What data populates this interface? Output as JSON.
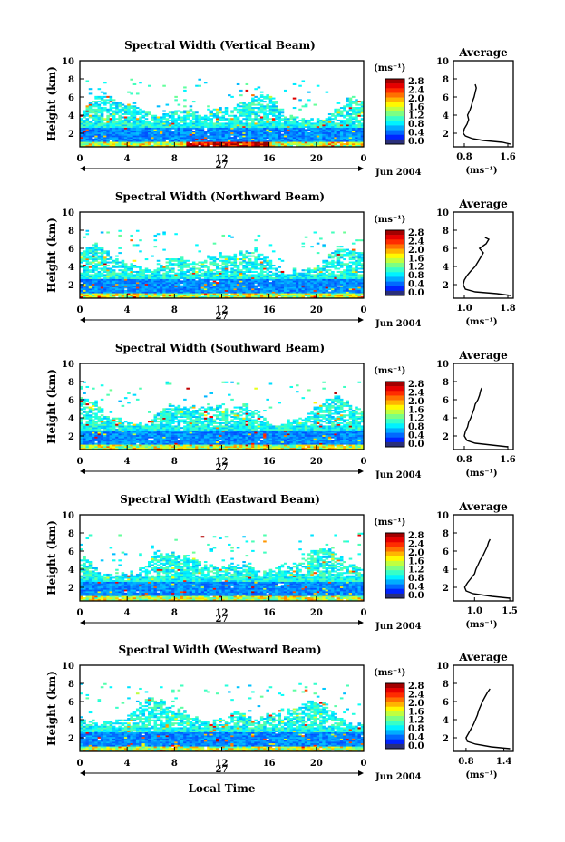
{
  "chart_data": [
    {
      "type": "heatmap",
      "title": "Spectral Width (Vertical Beam)",
      "ylabel": "Height (km)",
      "yticks": [
        "10",
        "8",
        "6",
        "4",
        "2"
      ],
      "xticks": [
        "0",
        "4",
        "8",
        "12",
        "16",
        "20",
        "0"
      ],
      "day_label": "27",
      "date_label": "Jun 2004",
      "xlim": [
        0,
        24
      ],
      "ylim": [
        0.5,
        10
      ],
      "colorbar": {
        "unit": "(ms⁻¹)",
        "ticks": [
          "2.8",
          "2.4",
          "2.0",
          "1.6",
          "1.2",
          "0.8",
          "0.4",
          "0.0"
        ],
        "range": [
          0.0,
          2.8
        ]
      },
      "average": {
        "title": "Average",
        "xlabel": "(ms⁻¹)",
        "xticks": [
          "0.8",
          "1.6"
        ],
        "xlim": [
          0.6,
          1.7
        ],
        "profile": [
          [
            1.65,
            0.8
          ],
          [
            1.5,
            1.0
          ],
          [
            1.15,
            1.2
          ],
          [
            0.95,
            1.4
          ],
          [
            0.82,
            1.7
          ],
          [
            0.78,
            2.0
          ],
          [
            0.8,
            2.5
          ],
          [
            0.85,
            3.0
          ],
          [
            0.88,
            3.5
          ],
          [
            0.86,
            4.0
          ],
          [
            0.9,
            4.5
          ],
          [
            0.93,
            5.0
          ],
          [
            0.95,
            5.5
          ],
          [
            0.98,
            6.0
          ],
          [
            1.0,
            6.5
          ],
          [
            1.02,
            7.0
          ],
          [
            1.0,
            7.4
          ]
        ]
      }
    },
    {
      "type": "heatmap",
      "title": "Spectral Width (Northward Beam)",
      "ylabel": "Height (km)",
      "yticks": [
        "10",
        "8",
        "6",
        "4",
        "2"
      ],
      "xticks": [
        "0",
        "4",
        "8",
        "12",
        "16",
        "20",
        "0"
      ],
      "day_label": "27",
      "date_label": "Jun 2004",
      "xlim": [
        0,
        24
      ],
      "ylim": [
        0.5,
        10
      ],
      "colorbar": {
        "unit": "(ms⁻¹)",
        "ticks": [
          "2.8",
          "2.4",
          "2.0",
          "1.6",
          "1.2",
          "0.8",
          "0.4",
          "0.0"
        ],
        "range": [
          0.0,
          2.8
        ]
      },
      "average": {
        "title": "Average",
        "xlabel": "(ms⁻¹)",
        "xticks": [
          "1.0",
          "1.8"
        ],
        "xlim": [
          0.8,
          1.9
        ],
        "profile": [
          [
            1.85,
            0.8
          ],
          [
            1.6,
            1.0
          ],
          [
            1.2,
            1.2
          ],
          [
            1.02,
            1.5
          ],
          [
            0.98,
            2.0
          ],
          [
            1.0,
            2.5
          ],
          [
            1.05,
            3.0
          ],
          [
            1.12,
            3.5
          ],
          [
            1.2,
            4.0
          ],
          [
            1.25,
            4.5
          ],
          [
            1.3,
            5.0
          ],
          [
            1.35,
            5.5
          ],
          [
            1.28,
            6.0
          ],
          [
            1.4,
            6.5
          ],
          [
            1.45,
            7.0
          ],
          [
            1.38,
            7.2
          ]
        ]
      }
    },
    {
      "type": "heatmap",
      "title": "Spectral Width (Southward Beam)",
      "ylabel": "Height (km)",
      "yticks": [
        "10",
        "8",
        "6",
        "4",
        "2"
      ],
      "xticks": [
        "0",
        "4",
        "8",
        "12",
        "16",
        "20",
        "0"
      ],
      "day_label": "27",
      "date_label": "Jun 2004",
      "xlim": [
        0,
        24
      ],
      "ylim": [
        0.5,
        10
      ],
      "colorbar": {
        "unit": "(ms⁻¹)",
        "ticks": [
          "2.8",
          "2.4",
          "2.0",
          "1.6",
          "1.2",
          "0.8",
          "0.4",
          "0.0"
        ],
        "range": [
          0.0,
          2.8
        ]
      },
      "average": {
        "title": "Average",
        "xlabel": "(ms⁻¹)",
        "xticks": [
          "0.8",
          "1.6"
        ],
        "xlim": [
          0.6,
          1.7
        ],
        "profile": [
          [
            1.6,
            0.8
          ],
          [
            1.3,
            1.0
          ],
          [
            1.0,
            1.2
          ],
          [
            0.85,
            1.5
          ],
          [
            0.8,
            2.0
          ],
          [
            0.82,
            2.5
          ],
          [
            0.86,
            3.0
          ],
          [
            0.88,
            3.5
          ],
          [
            0.92,
            4.0
          ],
          [
            0.95,
            4.5
          ],
          [
            0.98,
            5.0
          ],
          [
            1.0,
            5.5
          ],
          [
            1.05,
            6.0
          ],
          [
            1.08,
            6.5
          ],
          [
            1.1,
            7.0
          ],
          [
            1.12,
            7.3
          ]
        ]
      }
    },
    {
      "type": "heatmap",
      "title": "Spectral Width (Eastward Beam)",
      "ylabel": "Height (km)",
      "yticks": [
        "10",
        "8",
        "6",
        "4",
        "2"
      ],
      "xticks": [
        "0",
        "4",
        "8",
        "12",
        "16",
        "20",
        "0"
      ],
      "day_label": "27",
      "date_label": "Jun 2004",
      "xlim": [
        0,
        24
      ],
      "ylim": [
        0.5,
        10
      ],
      "colorbar": {
        "unit": "(ms⁻¹)",
        "ticks": [
          "2.8",
          "2.4",
          "2.0",
          "1.6",
          "1.2",
          "0.8",
          "0.4",
          "0.0"
        ],
        "range": [
          0.0,
          2.8
        ]
      },
      "average": {
        "title": "Average",
        "xlabel": "(ms⁻¹)",
        "xticks": [
          "1.0",
          "1.5"
        ],
        "xlim": [
          0.7,
          1.55
        ],
        "profile": [
          [
            1.5,
            0.8
          ],
          [
            1.25,
            1.0
          ],
          [
            0.98,
            1.3
          ],
          [
            0.88,
            1.6
          ],
          [
            0.86,
            2.0
          ],
          [
            0.9,
            2.5
          ],
          [
            0.95,
            3.0
          ],
          [
            1.0,
            3.5
          ],
          [
            1.02,
            4.0
          ],
          [
            1.05,
            4.5
          ],
          [
            1.08,
            5.0
          ],
          [
            1.12,
            5.5
          ],
          [
            1.15,
            6.0
          ],
          [
            1.18,
            6.5
          ],
          [
            1.2,
            7.0
          ],
          [
            1.22,
            7.3
          ]
        ]
      }
    },
    {
      "type": "heatmap",
      "title": "Spectral Width (Westward Beam)",
      "ylabel": "Height (km)",
      "yticks": [
        "10",
        "8",
        "6",
        "4",
        "2"
      ],
      "xticks": [
        "0",
        "4",
        "8",
        "12",
        "16",
        "20",
        "0"
      ],
      "day_label": "27",
      "date_label": "Jun 2004",
      "xlabel": "Local Time",
      "xlim": [
        0,
        24
      ],
      "ylim": [
        0.5,
        10
      ],
      "colorbar": {
        "unit": "(ms⁻¹)",
        "ticks": [
          "2.8",
          "2.4",
          "2.0",
          "1.6",
          "1.2",
          "0.8",
          "0.4",
          "0.0"
        ],
        "range": [
          0.0,
          2.8
        ]
      },
      "average": {
        "title": "Average",
        "xlabel": "(ms⁻¹)",
        "xticks": [
          "0.8",
          "1.4"
        ],
        "xlim": [
          0.6,
          1.55
        ],
        "profile": [
          [
            1.5,
            0.8
          ],
          [
            1.2,
            1.0
          ],
          [
            0.95,
            1.3
          ],
          [
            0.82,
            1.6
          ],
          [
            0.8,
            2.0
          ],
          [
            0.84,
            2.5
          ],
          [
            0.88,
            3.0
          ],
          [
            0.92,
            3.5
          ],
          [
            0.95,
            4.0
          ],
          [
            0.98,
            4.5
          ],
          [
            1.0,
            5.0
          ],
          [
            1.03,
            5.5
          ],
          [
            1.06,
            6.0
          ],
          [
            1.1,
            6.5
          ],
          [
            1.14,
            7.0
          ],
          [
            1.18,
            7.4
          ]
        ]
      }
    }
  ]
}
